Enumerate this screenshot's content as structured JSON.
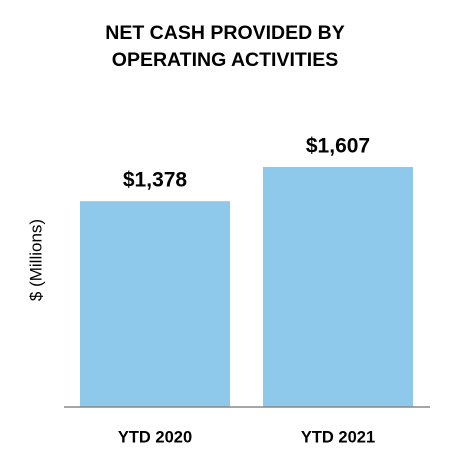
{
  "chart_data": {
    "type": "bar",
    "title": "NET CASH PROVIDED BY OPERATING ACTIVITIES",
    "y_label": "$ (Millions)",
    "categories": [
      "YTD 2020",
      "YTD 2021"
    ],
    "values": [
      1378,
      1607
    ],
    "value_labels": [
      "$1,378",
      "$1,607"
    ],
    "color": "#8ec8ea"
  }
}
